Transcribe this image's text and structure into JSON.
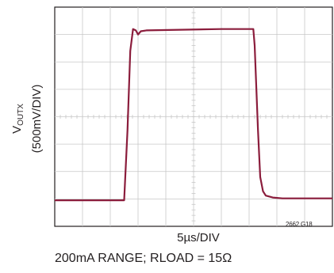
{
  "chart_data": {
    "type": "line",
    "title": "",
    "ylabel": {
      "symbol": "V",
      "subscript": "OUTX",
      "scale": "(500mV/DIV)"
    },
    "xlabel": "5µs/DIV",
    "figure_id": "2662 G18",
    "condition": "200mA RANGE; RLOAD = 15Ω",
    "grid": true,
    "x_divisions": 10,
    "y_divisions": 8,
    "xlim": [
      0,
      10
    ],
    "ylim": [
      0,
      8
    ],
    "series": [
      {
        "color": "#8b1d3c",
        "x": [
          0,
          2.5,
          2.62,
          2.72,
          2.82,
          2.92,
          3.0,
          3.1,
          3.3,
          6.0,
          7.15,
          7.2,
          7.32,
          7.4,
          7.5,
          7.6,
          7.85,
          8.2,
          10
        ],
        "y": [
          0.95,
          0.95,
          3.5,
          6.4,
          7.2,
          7.15,
          7.0,
          7.12,
          7.15,
          7.2,
          7.2,
          6.6,
          3.5,
          1.8,
          1.28,
          1.12,
          1.05,
          1.02,
          1.02
        ]
      }
    ]
  }
}
